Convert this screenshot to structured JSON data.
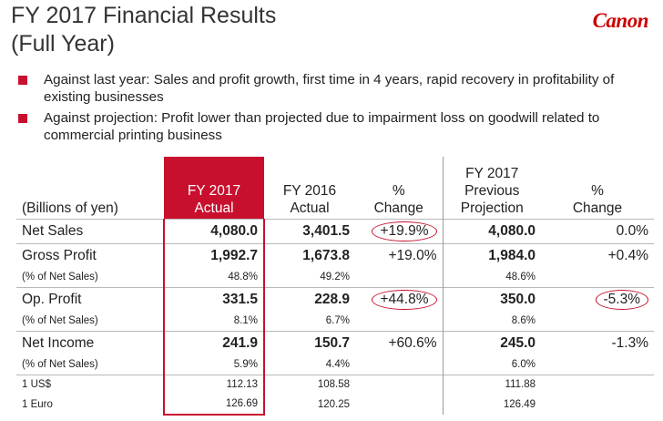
{
  "header": {
    "title_line1": "FY 2017 Financial Results",
    "title_line2": "(Full Year)",
    "logo": "Canon"
  },
  "bullets": [
    "Against last year: Sales and profit growth, first time in 4 years, rapid recovery in profitability of existing businesses",
    "Against projection: Profit lower than projected due to impairment loss on goodwill related to commercial printing business"
  ],
  "table": {
    "columns": {
      "label": "(Billions of yen)",
      "fy2017_line1": "FY 2017",
      "fy2017_line2": "Actual",
      "fy2016_line1": "FY 2016",
      "fy2016_line2": "Actual",
      "pct1_line1": "%",
      "pct1_line2": "Change",
      "proj_line1": "FY 2017",
      "proj_line2": "Previous",
      "proj_line3": "Projection",
      "pct2_line1": "%",
      "pct2_line2": "Change"
    },
    "rows": [
      {
        "label": "Net Sales",
        "fy2017": "4,080.0",
        "fy2016": "3,401.5",
        "pct1": "+19.9%",
        "proj": "4,080.0",
        "pct2": "0.0%"
      },
      {
        "label": "Gross Profit",
        "fy2017": "1,992.7",
        "fy2016": "1,673.8",
        "pct1": "+19.0%",
        "proj": "1,984.0",
        "pct2": "+0.4%"
      },
      {
        "label": "(% of Net Sales)",
        "fy2017": "48.8%",
        "fy2016": "49.2%",
        "proj": "48.6%"
      },
      {
        "label": "Op. Profit",
        "fy2017": "331.5",
        "fy2016": "228.9",
        "pct1": "+44.8%",
        "proj": "350.0",
        "pct2": "-5.3%"
      },
      {
        "label": "(% of Net Sales)",
        "fy2017": "8.1%",
        "fy2016": "6.7%",
        "proj": "8.6%"
      },
      {
        "label": "Net Income",
        "fy2017": "241.9",
        "fy2016": "150.7",
        "pct1": "+60.6%",
        "proj": "245.0",
        "pct2": "-1.3%"
      },
      {
        "label": "(% of Net Sales)",
        "fy2017": "5.9%",
        "fy2016": "4.4%",
        "proj": "6.0%"
      },
      {
        "label": "1 US$",
        "fy2017": "112.13",
        "fy2016": "108.58",
        "proj": "111.88"
      },
      {
        "label": "1 Euro",
        "fy2017": "126.69",
        "fy2016": "120.25",
        "proj": "126.49"
      }
    ]
  },
  "colors": {
    "accent": "#c8102e"
  }
}
